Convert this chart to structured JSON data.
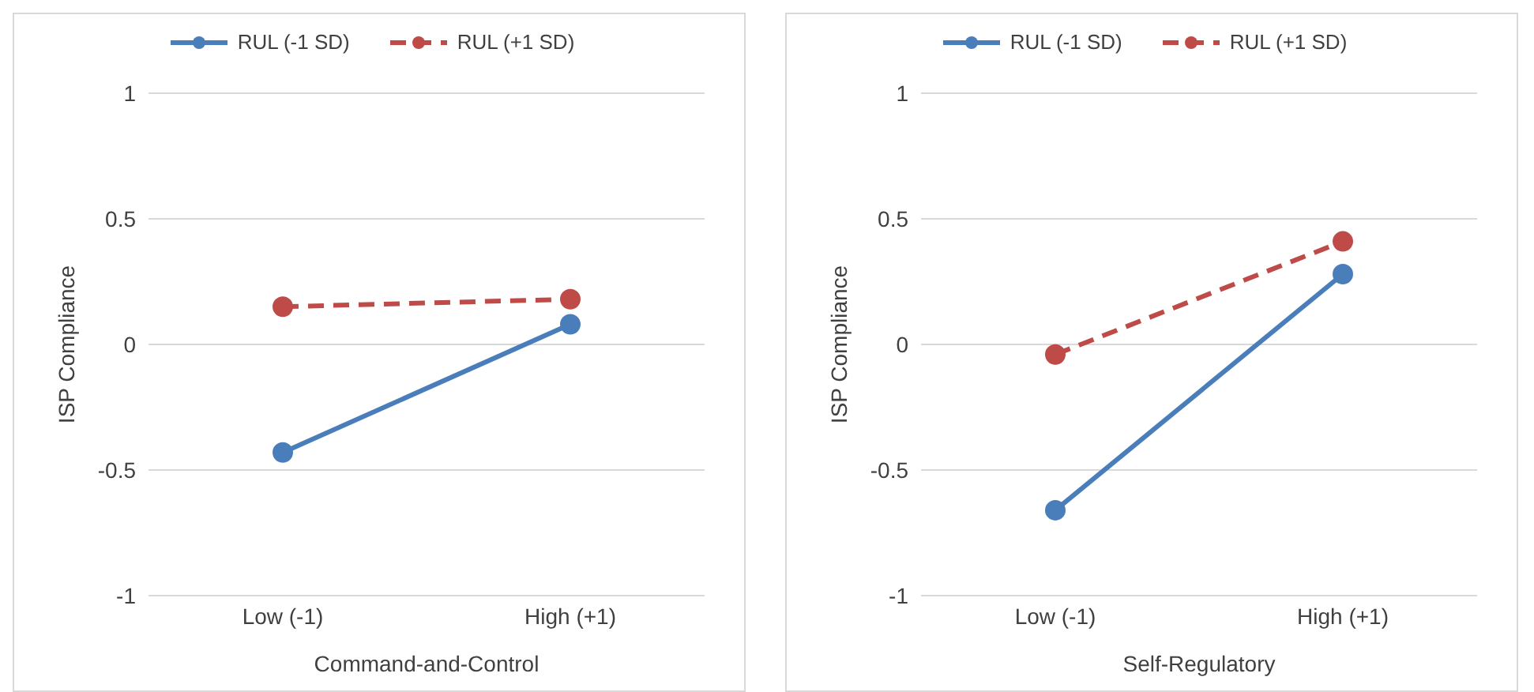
{
  "chart_data": [
    {
      "type": "line",
      "categories": [
        "Low (-1)",
        "High (+1)"
      ],
      "xlabel": "Command-and-Control",
      "ylabel": "ISP Compliance",
      "ylim": [
        -1,
        1
      ],
      "yticks": [
        -1,
        -0.5,
        0,
        0.5,
        1
      ],
      "grid": "y",
      "legend": "top",
      "marker": "circle",
      "series": [
        {
          "name": "RUL (-1 SD)",
          "color": "#4a7ebb",
          "line_style": "solid",
          "values": [
            -0.43,
            0.08
          ]
        },
        {
          "name": "RUL (+1 SD)",
          "color": "#be4b48",
          "line_style": "dashed",
          "values": [
            0.15,
            0.18
          ]
        }
      ]
    },
    {
      "type": "line",
      "categories": [
        "Low (-1)",
        "High (+1)"
      ],
      "xlabel": "Self-Regulatory",
      "ylabel": "ISP Compliance",
      "ylim": [
        -1,
        1
      ],
      "yticks": [
        -1,
        -0.5,
        0,
        0.5,
        1
      ],
      "grid": "y",
      "legend": "top",
      "marker": "circle",
      "series": [
        {
          "name": "RUL (-1 SD)",
          "color": "#4a7ebb",
          "line_style": "solid",
          "values": [
            -0.66,
            0.28
          ]
        },
        {
          "name": "RUL (+1 SD)",
          "color": "#be4b48",
          "line_style": "dashed",
          "values": [
            -0.04,
            0.41
          ]
        }
      ]
    }
  ]
}
